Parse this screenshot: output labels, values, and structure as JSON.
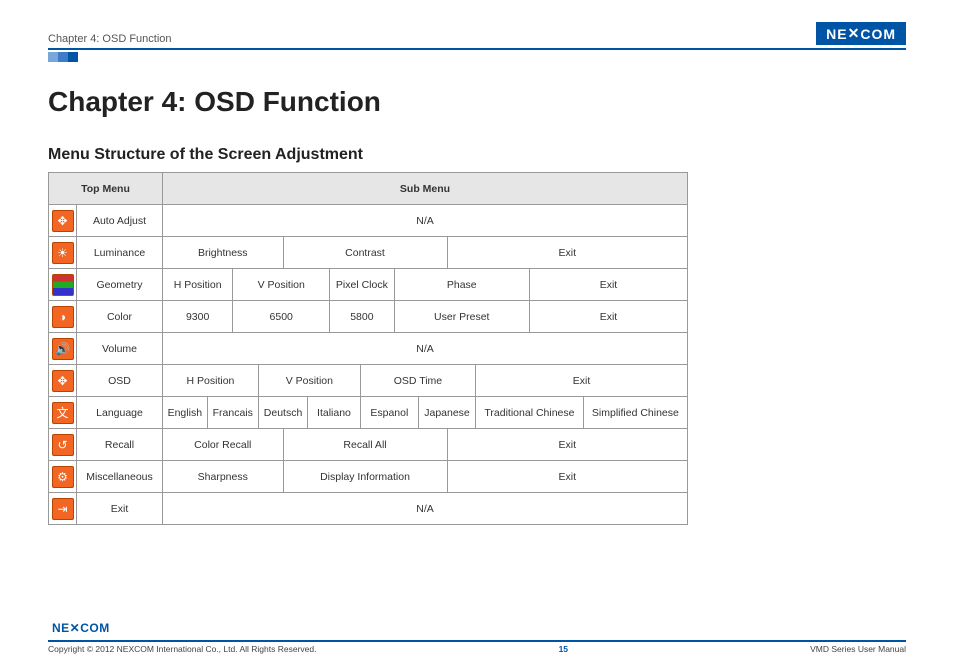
{
  "header": {
    "chapter_label": "Chapter 4: OSD Function",
    "logo_text": "NE COM",
    "logo_x": "X"
  },
  "main": {
    "title": "Chapter 4: OSD Function",
    "subtitle": "Menu Structure of the Screen Adjustment",
    "table": {
      "head_top": "Top Menu",
      "head_sub": "Sub Menu",
      "rows": [
        {
          "icon": "auto-adjust-icon",
          "glyph": "✥",
          "name": "Auto Adjust",
          "na": "N/A"
        },
        {
          "icon": "luminance-icon",
          "glyph": "☀",
          "name": "Luminance",
          "cells3": [
            "Brightness",
            "Contrast",
            "Exit"
          ]
        },
        {
          "icon": "geometry-icon",
          "glyph": "",
          "name": "Geometry",
          "cells5": [
            "H Position",
            "V Position",
            "Pixel Clock",
            "Phase",
            "Exit"
          ]
        },
        {
          "icon": "color-icon",
          "glyph": "◑",
          "name": "Color",
          "cells5": [
            "9300",
            "6500",
            "5800",
            "User Preset",
            "Exit"
          ]
        },
        {
          "icon": "volume-icon",
          "glyph": "🔊",
          "name": "Volume",
          "na": "N/A"
        },
        {
          "icon": "osd-icon",
          "glyph": "✥",
          "name": "OSD",
          "cells4": [
            "H Position",
            "V Position",
            "OSD Time",
            "Exit"
          ]
        },
        {
          "icon": "language-icon",
          "glyph": "文",
          "name": "Language",
          "cells8": [
            "English",
            "Francais",
            "Deutsch",
            "Italiano",
            "Espanol",
            "Japanese",
            "Traditional Chinese",
            "Simplified Chinese"
          ]
        },
        {
          "icon": "recall-icon",
          "glyph": "↺",
          "name": "Recall",
          "cells3": [
            "Color Recall",
            "Recall All",
            "Exit"
          ]
        },
        {
          "icon": "misc-icon",
          "glyph": "⚙",
          "name": "Miscellaneous",
          "cells3": [
            "Sharpness",
            "Display Information",
            "Exit"
          ]
        },
        {
          "icon": "exit-icon",
          "glyph": "⇥",
          "name": "Exit",
          "na": "N/A"
        }
      ]
    }
  },
  "footer": {
    "logo": "NEXCOM",
    "copyright": "Copyright © 2012 NEXCOM International Co., Ltd. All Rights Reserved.",
    "page": "15",
    "manual": "VMD Series User Manual"
  },
  "colors": {
    "brand": "#0054a6",
    "icon_bg": "#f26522"
  }
}
